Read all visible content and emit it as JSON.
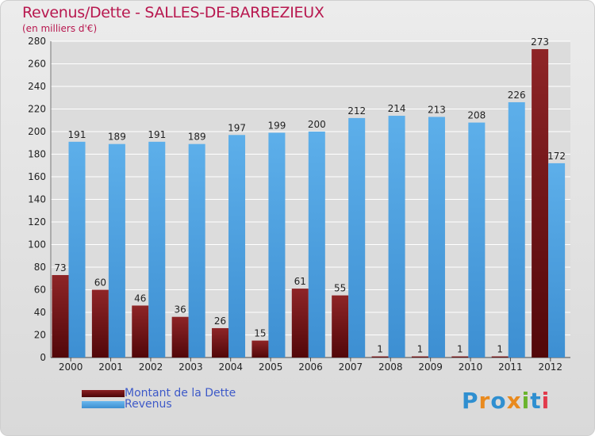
{
  "chart_data": {
    "type": "bar",
    "title": "Revenus/Dette - SALLES-DE-BARBEZIEUX",
    "subtitle": "(en milliers d'€)",
    "xlabel": "",
    "ylabel": "",
    "ylim": [
      0,
      280
    ],
    "yticks": [
      0,
      20,
      40,
      60,
      80,
      100,
      120,
      140,
      160,
      180,
      200,
      220,
      240,
      260,
      280
    ],
    "grid": true,
    "categories": [
      "2000",
      "2001",
      "2002",
      "2003",
      "2004",
      "2005",
      "2006",
      "2007",
      "2008",
      "2009",
      "2010",
      "2011",
      "2012"
    ],
    "series": [
      {
        "name": "Montant de la Dette",
        "color": "#7a1a1c",
        "values": [
          73,
          60,
          46,
          36,
          26,
          15,
          61,
          55,
          1,
          1,
          1,
          1,
          273
        ]
      },
      {
        "name": "Revenus",
        "color": "#4ea6e6",
        "values": [
          191,
          189,
          191,
          189,
          197,
          199,
          200,
          212,
          214,
          213,
          208,
          226,
          172
        ]
      }
    ],
    "legend_position": "bottom-left"
  },
  "logo": {
    "text": "Proxiti",
    "letters": [
      "P",
      "r",
      "o",
      "x",
      "i",
      "t",
      "i"
    ],
    "colors": [
      "#2f8fd0",
      "#e98a1e",
      "#2f8fd0",
      "#e98a1e",
      "#6ab42d",
      "#2f8fd0",
      "#e23a4b"
    ]
  }
}
